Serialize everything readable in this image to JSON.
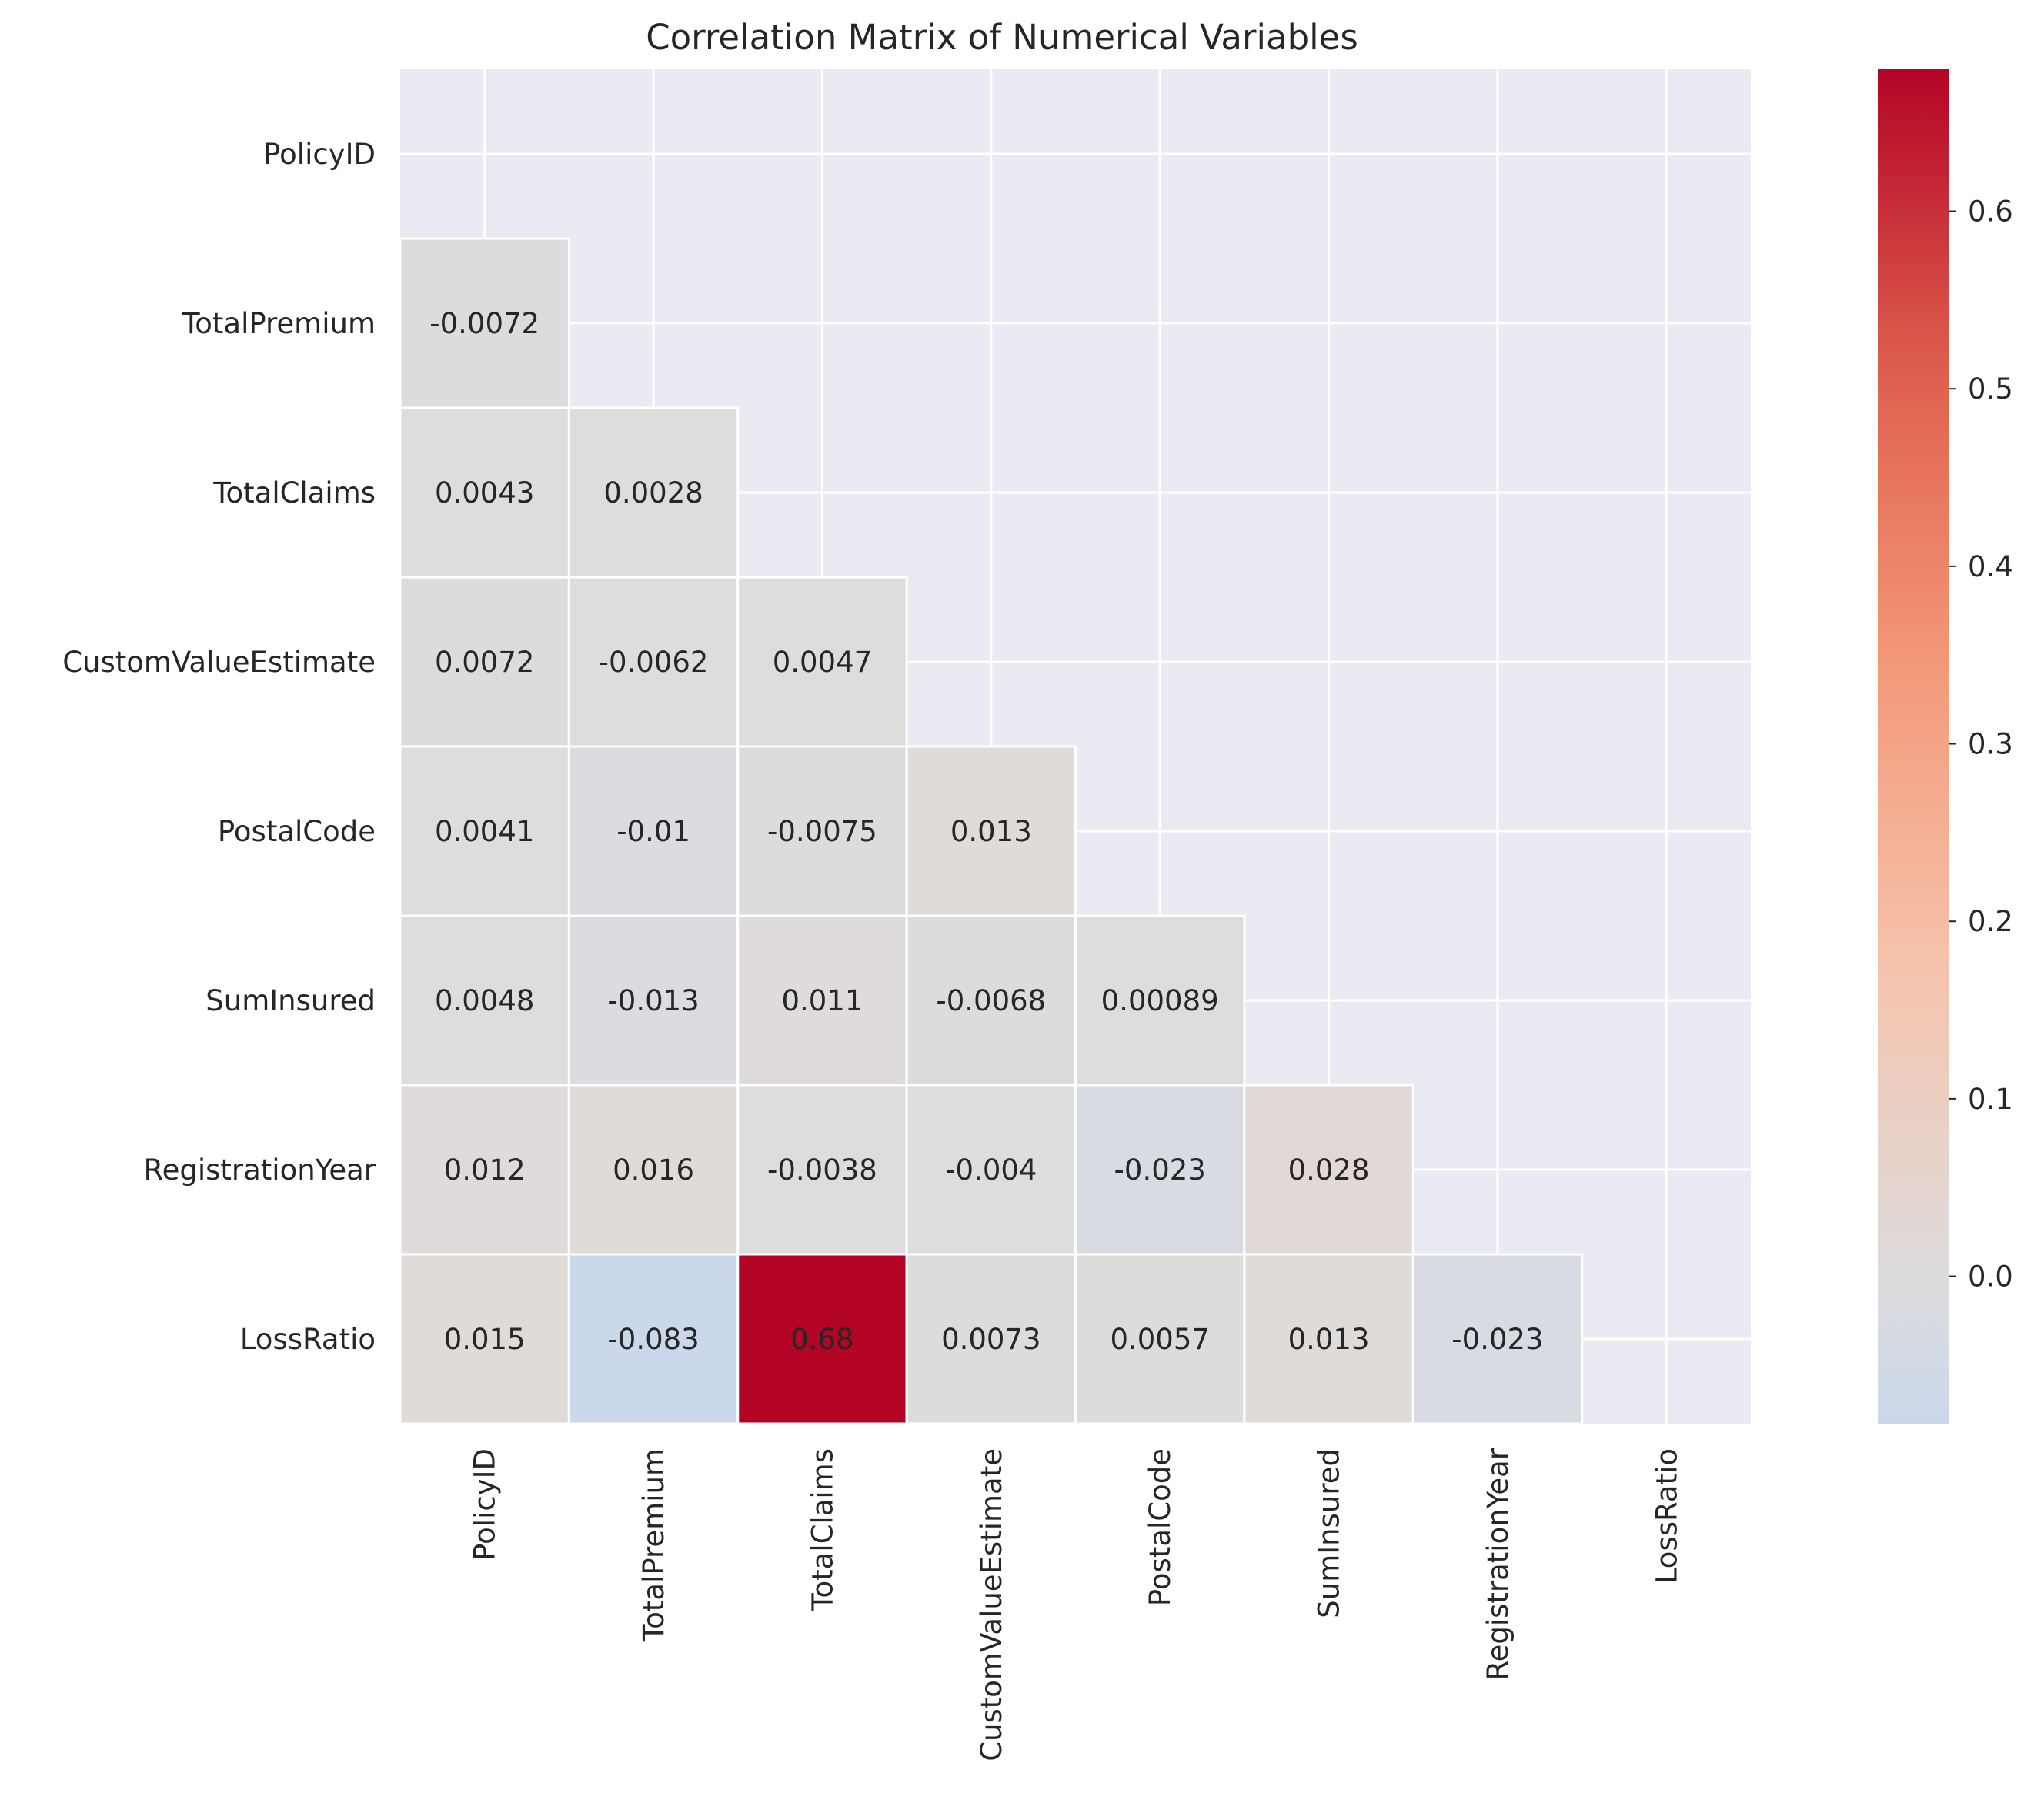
{
  "chart_data": {
    "type": "heatmap",
    "title": "Correlation Matrix of Numerical Variables",
    "variables": [
      "PolicyID",
      "TotalPremium",
      "TotalClaims",
      "CustomValueEstimate",
      "PostalCode",
      "SumInsured",
      "RegistrationYear",
      "LossRatio"
    ],
    "mask": "upper triangle including diagonal (cells blank)",
    "values": [
      [
        null,
        null,
        null,
        null,
        null,
        null,
        null,
        null
      ],
      [
        "-0.0072",
        null,
        null,
        null,
        null,
        null,
        null,
        null
      ],
      [
        "0.0043",
        "0.0028",
        null,
        null,
        null,
        null,
        null,
        null
      ],
      [
        "0.0072",
        "-0.0062",
        "0.0047",
        null,
        null,
        null,
        null,
        null
      ],
      [
        "0.0041",
        "-0.01",
        "-0.0075",
        "0.013",
        null,
        null,
        null,
        null
      ],
      [
        "0.0048",
        "-0.013",
        "0.011",
        "-0.0068",
        "0.00089",
        null,
        null,
        null
      ],
      [
        "0.012",
        "0.016",
        "-0.0038",
        "-0.004",
        "-0.023",
        "0.028",
        null,
        null
      ],
      [
        "0.015",
        "-0.083",
        "0.68",
        "0.0073",
        "0.0057",
        "0.013",
        "-0.023",
        null
      ]
    ],
    "colormap": "coolwarm",
    "center": 0,
    "colorbar": {
      "range": [
        -0.083,
        0.68
      ],
      "ticks": [
        "0.0",
        "0.1",
        "0.2",
        "0.3",
        "0.4",
        "0.5",
        "0.6"
      ]
    },
    "background_color": "#eaeaf2",
    "grid": true
  }
}
